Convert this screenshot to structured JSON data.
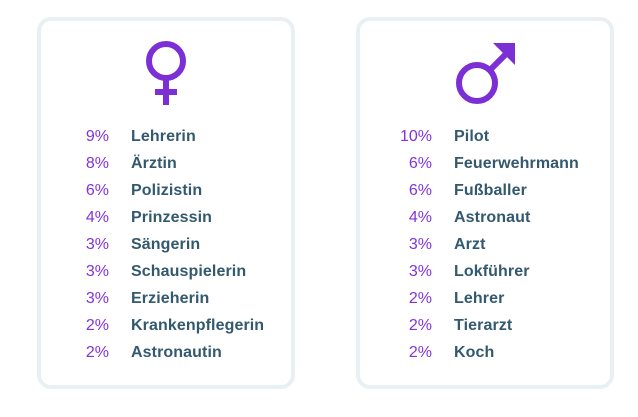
{
  "colors": {
    "accent": "#7b2fd5",
    "text": "#33596f",
    "border": "#e9f0f4"
  },
  "female": {
    "icon": "female-symbol-icon",
    "items": [
      {
        "pct": "9%",
        "job": "Lehrerin"
      },
      {
        "pct": "8%",
        "job": "Ärztin"
      },
      {
        "pct": "6%",
        "job": "Polizistin"
      },
      {
        "pct": "4%",
        "job": "Prinzessin"
      },
      {
        "pct": "3%",
        "job": "Sängerin"
      },
      {
        "pct": "3%",
        "job": "Schauspielerin"
      },
      {
        "pct": "3%",
        "job": "Erzieherin"
      },
      {
        "pct": "2%",
        "job": "Krankenpflegerin"
      },
      {
        "pct": "2%",
        "job": "Astronautin"
      }
    ]
  },
  "male": {
    "icon": "male-symbol-icon",
    "items": [
      {
        "pct": "10%",
        "job": "Pilot"
      },
      {
        "pct": "6%",
        "job": "Feuerwehrmann"
      },
      {
        "pct": "6%",
        "job": "Fußballer"
      },
      {
        "pct": "4%",
        "job": "Astronaut"
      },
      {
        "pct": "3%",
        "job": "Arzt"
      },
      {
        "pct": "3%",
        "job": "Lokführer"
      },
      {
        "pct": "2%",
        "job": "Lehrer"
      },
      {
        "pct": "2%",
        "job": "Tierarzt"
      },
      {
        "pct": "2%",
        "job": "Koch"
      }
    ]
  }
}
